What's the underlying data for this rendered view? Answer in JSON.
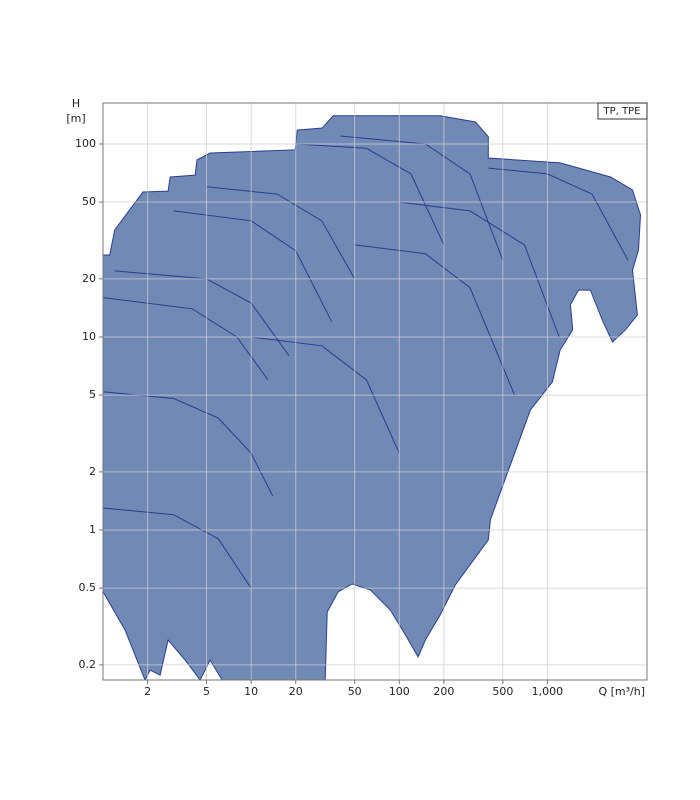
{
  "chart_data": {
    "type": "area",
    "badge": "TP, TPE",
    "y_label": "H",
    "y_unit": "[m]",
    "x_label": "Q [m³/h]",
    "xscale": "log",
    "yscale": "log",
    "grid": true,
    "xlim": [
      1,
      4700
    ],
    "ylim": [
      0.167,
      163
    ],
    "xticks": [
      2,
      5,
      10,
      20,
      50,
      100,
      200,
      500,
      {
        "value": 1000,
        "label": "1,000"
      }
    ],
    "yticks": [
      0.2,
      0.5,
      1,
      2,
      5,
      10,
      20,
      50,
      100
    ],
    "series": [
      {
        "fill": "#7089b5",
        "color": "#2a3d8f",
        "x": [
          1.0,
          1.11,
          1.2,
          1.86,
          2.75,
          2.84,
          4.19,
          4.31,
          5.28,
          19.8,
          20.5,
          30.2,
          35.8,
          189,
          327,
          399,
          399,
          1220,
          2670,
          3750,
          4250,
          4120,
          3750,
          4050,
          3370,
          2750,
          2350,
          1950,
          1620,
          1430,
          1480,
          1220,
          1080,
          767,
          412,
          399,
          239,
          189,
          150,
          134,
          110,
          86.9,
          63.7,
          48.1,
          38.7,
          32.6,
          31.6,
          6.37,
          5.28,
          4.52,
          3.58,
          2.75,
          2.43,
          2.08,
          1.92,
          1.41,
          1.0
        ],
        "values": [
          26.6,
          26.6,
          35.8,
          56.4,
          57.0,
          67.4,
          69.0,
          82.6,
          89.8,
          93.1,
          118,
          121,
          140,
          140,
          130,
          109,
          84.6,
          79.8,
          67.4,
          57.8,
          42.9,
          28.2,
          22.2,
          13.0,
          10.9,
          9.42,
          12.2,
          17.5,
          17.5,
          14.7,
          10.9,
          8.57,
          5.85,
          4.19,
          1.13,
          0.888,
          0.519,
          0.363,
          0.269,
          0.22,
          0.286,
          0.385,
          0.489,
          0.525,
          0.478,
          0.376,
          0.167,
          0.167,
          0.212,
          0.167,
          0.212,
          0.269,
          0.177,
          0.188,
          0.167,
          0.303,
          0.478
        ]
      },
      {
        "color": "#2a3d8f",
        "x": [
          1,
          3,
          6,
          10,
          14
        ],
        "values": [
          5.2,
          4.8,
          3.8,
          2.5,
          1.5
        ]
      },
      {
        "color": "#2a3d8f",
        "x": [
          1,
          4,
          8,
          13
        ],
        "values": [
          16,
          14,
          10,
          6
        ]
      },
      {
        "color": "#2a3d8f",
        "x": [
          1.2,
          5,
          10,
          18
        ],
        "values": [
          22,
          20,
          15,
          8
        ]
      },
      {
        "color": "#2a3d8f",
        "x": [
          5,
          15,
          30,
          50
        ],
        "values": [
          60,
          55,
          40,
          20
        ]
      },
      {
        "color": "#2a3d8f",
        "x": [
          20,
          60,
          120,
          200
        ],
        "values": [
          100,
          95,
          70,
          30
        ]
      },
      {
        "color": "#2a3d8f",
        "x": [
          40,
          150,
          300,
          500
        ],
        "values": [
          110,
          100,
          70,
          25
        ]
      },
      {
        "color": "#2a3d8f",
        "x": [
          400,
          1000,
          2000,
          3500
        ],
        "values": [
          75,
          70,
          55,
          25
        ]
      },
      {
        "color": "#2a3d8f",
        "x": [
          10,
          30,
          60,
          100
        ],
        "values": [
          10,
          9,
          6,
          2.5
        ]
      },
      {
        "color": "#2a3d8f",
        "x": [
          50,
          150,
          300,
          600
        ],
        "values": [
          30,
          27,
          18,
          5
        ]
      },
      {
        "color": "#2a3d8f",
        "x": [
          1,
          3,
          6,
          10
        ],
        "values": [
          1.3,
          1.2,
          0.9,
          0.5
        ]
      },
      {
        "color": "#2a3d8f",
        "x": [
          100,
          300,
          700,
          1200
        ],
        "values": [
          50,
          45,
          30,
          10
        ]
      },
      {
        "color": "#2a3d8f",
        "x": [
          3,
          10,
          20,
          35
        ],
        "values": [
          45,
          40,
          28,
          12
        ]
      }
    ]
  }
}
